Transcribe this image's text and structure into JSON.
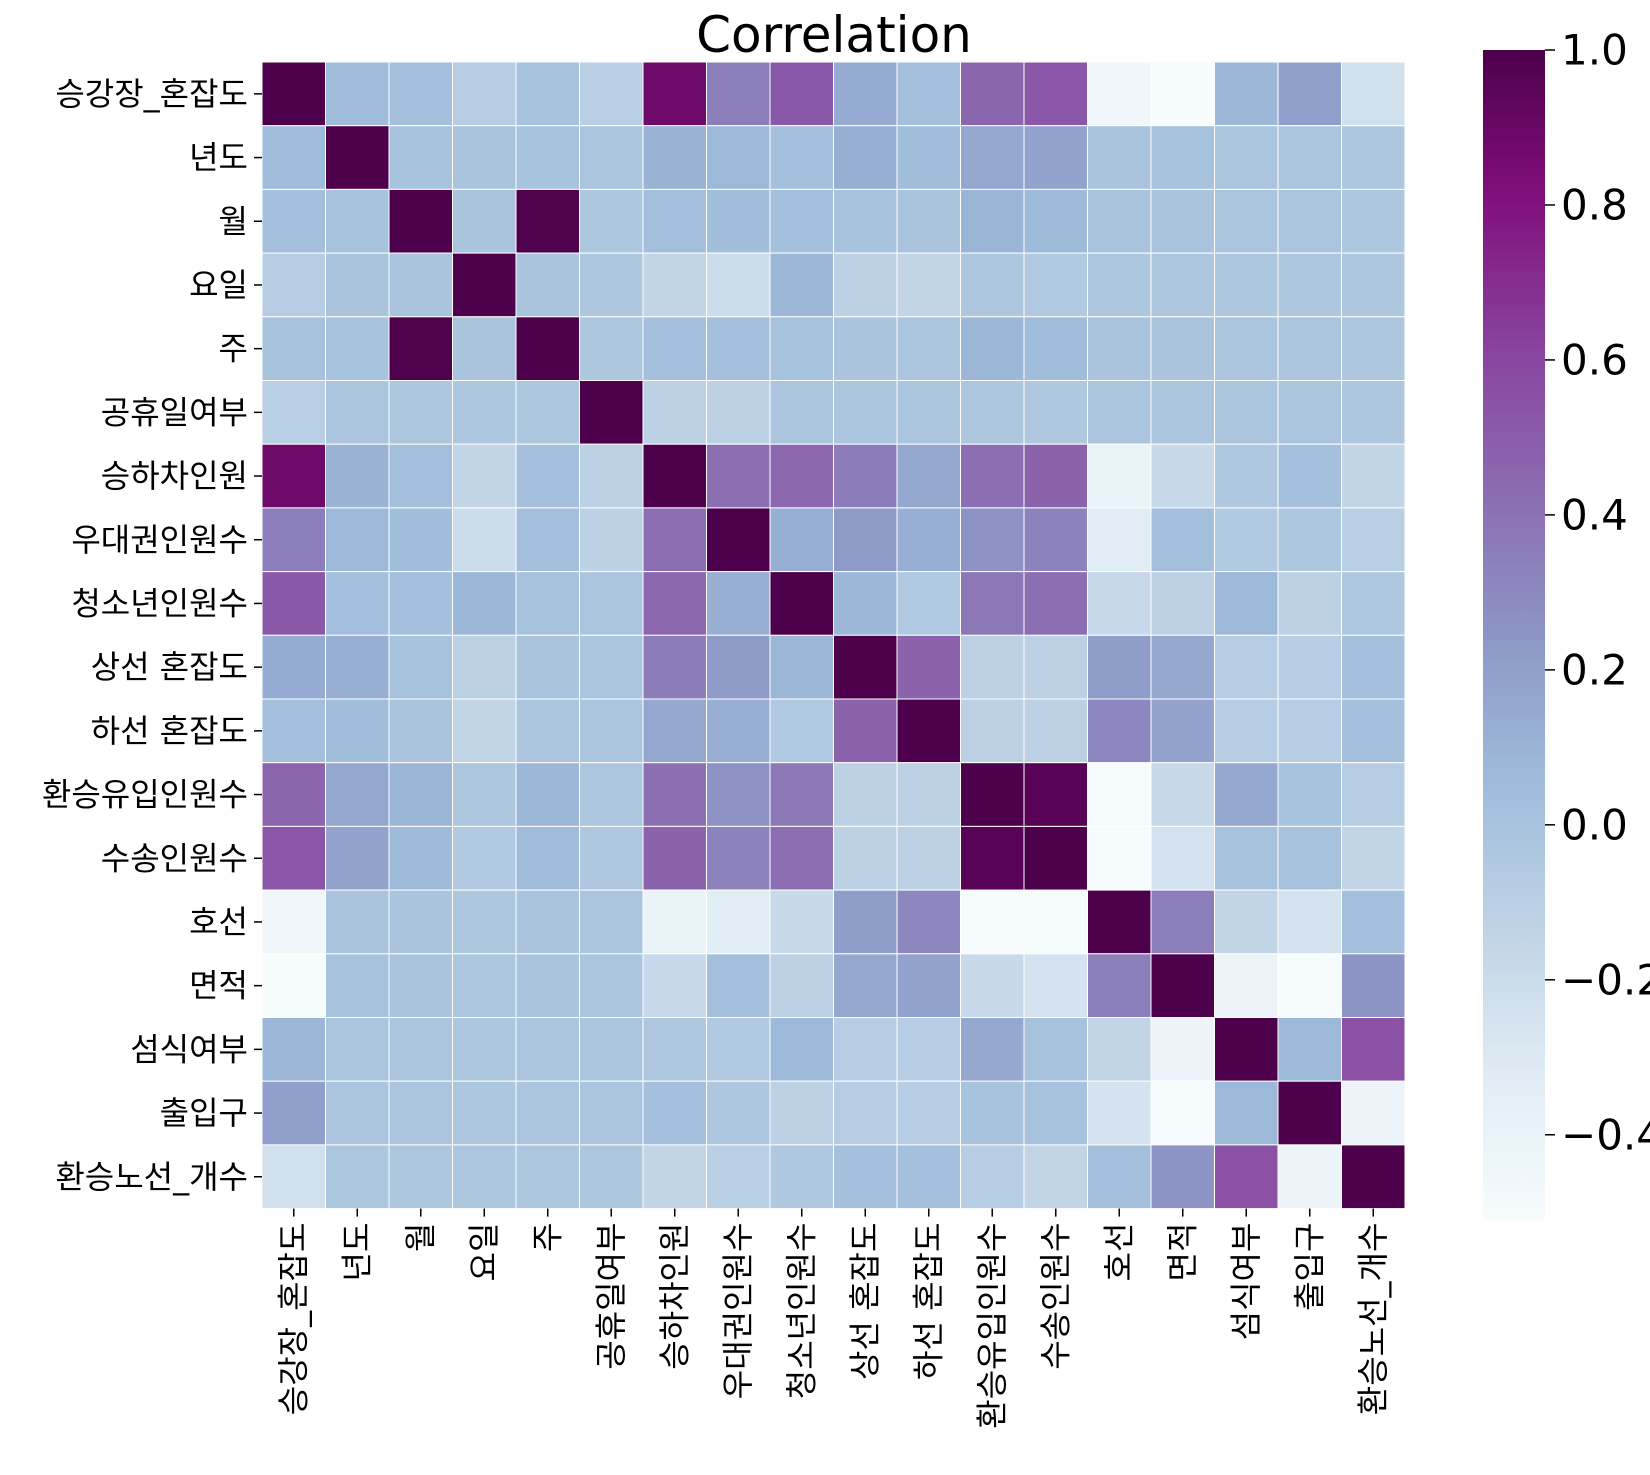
{
  "chart_data": {
    "type": "heatmap",
    "title": "Correlation",
    "xlabel": "",
    "ylabel": "",
    "labels": [
      "승강장_혼잡도",
      "년도",
      "월",
      "요일",
      "주",
      "공휴일여부",
      "승하차인원",
      "우대권인원수",
      "청소년인원수",
      "상선 혼잡도",
      "하선 혼잡도",
      "환승유입인원수",
      "수송인원수",
      "호선",
      "면적",
      "섬식여부",
      "출입구",
      "환승노선_개수"
    ],
    "matrix": [
      [
        1.0,
        0.05,
        0.02,
        -0.08,
        0.01,
        -0.1,
        0.88,
        0.35,
        0.52,
        0.14,
        0.03,
        0.46,
        0.53,
        -0.45,
        -0.51,
        0.08,
        0.2,
        -0.23
      ],
      [
        0.05,
        1.0,
        0.0,
        -0.01,
        0.0,
        -0.02,
        0.1,
        0.07,
        0.02,
        0.12,
        0.04,
        0.16,
        0.18,
        -0.01,
        0.01,
        -0.02,
        -0.02,
        -0.03
      ],
      [
        0.02,
        0.0,
        1.0,
        -0.01,
        0.99,
        -0.03,
        0.03,
        0.04,
        0.02,
        0.0,
        -0.01,
        0.09,
        0.06,
        -0.01,
        -0.01,
        -0.02,
        -0.02,
        -0.03
      ],
      [
        -0.08,
        -0.01,
        -0.01,
        1.0,
        -0.01,
        -0.03,
        -0.15,
        -0.2,
        0.08,
        -0.12,
        -0.15,
        -0.03,
        -0.05,
        -0.03,
        -0.03,
        -0.03,
        -0.03,
        -0.03
      ],
      [
        0.01,
        0.0,
        0.99,
        -0.01,
        1.0,
        -0.03,
        0.02,
        0.03,
        0.01,
        -0.01,
        -0.02,
        0.08,
        0.05,
        -0.01,
        -0.01,
        -0.02,
        -0.02,
        -0.03
      ],
      [
        -0.1,
        -0.02,
        -0.03,
        -0.03,
        -0.03,
        1.0,
        -0.12,
        -0.12,
        -0.02,
        -0.02,
        -0.02,
        -0.03,
        -0.04,
        -0.02,
        -0.02,
        -0.02,
        -0.02,
        -0.03
      ],
      [
        0.88,
        0.1,
        0.03,
        -0.15,
        0.02,
        -0.12,
        1.0,
        0.42,
        0.45,
        0.36,
        0.16,
        0.42,
        0.47,
        -0.4,
        -0.18,
        -0.04,
        0.02,
        -0.15
      ],
      [
        0.35,
        0.07,
        0.04,
        -0.2,
        0.03,
        -0.12,
        0.42,
        1.0,
        0.12,
        0.22,
        0.12,
        0.26,
        0.33,
        -0.33,
        0.03,
        -0.05,
        -0.03,
        -0.1
      ],
      [
        0.52,
        0.02,
        0.02,
        0.08,
        0.01,
        -0.02,
        0.45,
        0.12,
        1.0,
        0.08,
        -0.05,
        0.38,
        0.42,
        -0.18,
        -0.12,
        0.07,
        -0.12,
        -0.04
      ],
      [
        0.14,
        0.12,
        0.0,
        -0.12,
        -0.01,
        -0.02,
        0.36,
        0.22,
        0.08,
        1.0,
        0.47,
        -0.12,
        -0.12,
        0.21,
        0.16,
        -0.08,
        -0.08,
        0.02
      ],
      [
        0.03,
        0.04,
        -0.01,
        -0.15,
        -0.02,
        -0.02,
        0.16,
        0.12,
        -0.05,
        0.47,
        1.0,
        -0.12,
        -0.12,
        0.31,
        0.18,
        -0.08,
        -0.08,
        0.02
      ],
      [
        0.46,
        0.16,
        0.09,
        -0.03,
        0.08,
        -0.03,
        0.42,
        0.26,
        0.38,
        -0.12,
        -0.12,
        1.0,
        0.96,
        -0.5,
        -0.18,
        0.15,
        0.0,
        -0.08
      ],
      [
        0.53,
        0.18,
        0.06,
        -0.05,
        0.05,
        -0.04,
        0.47,
        0.33,
        0.42,
        -0.12,
        -0.12,
        0.96,
        1.0,
        -0.5,
        -0.25,
        0.01,
        0.01,
        -0.15
      ],
      [
        -0.45,
        -0.01,
        -0.01,
        -0.03,
        -0.01,
        -0.02,
        -0.4,
        -0.33,
        -0.18,
        0.21,
        0.31,
        -0.5,
        -0.5,
        1.0,
        0.35,
        -0.15,
        -0.25,
        0.03
      ],
      [
        -0.51,
        0.01,
        -0.01,
        -0.03,
        -0.01,
        -0.02,
        -0.18,
        0.03,
        -0.12,
        0.16,
        0.18,
        -0.18,
        -0.25,
        0.35,
        1.0,
        -0.42,
        -0.5,
        0.25
      ],
      [
        0.08,
        -0.02,
        -0.02,
        -0.03,
        -0.02,
        -0.02,
        -0.04,
        -0.05,
        0.07,
        -0.08,
        -0.08,
        0.15,
        0.01,
        -0.15,
        -0.42,
        1.0,
        0.07,
        0.55
      ],
      [
        0.2,
        -0.02,
        -0.02,
        -0.03,
        -0.02,
        -0.02,
        0.02,
        -0.03,
        -0.12,
        -0.08,
        -0.08,
        0.0,
        0.01,
        -0.25,
        -0.5,
        0.07,
        1.0,
        -0.42
      ],
      [
        -0.23,
        -0.03,
        -0.03,
        -0.03,
        -0.03,
        -0.03,
        -0.15,
        -0.1,
        -0.04,
        0.02,
        0.02,
        -0.08,
        -0.15,
        0.03,
        0.25,
        0.55,
        -0.42,
        1.0
      ]
    ],
    "colorbar": {
      "range": [
        -0.51,
        1.0
      ],
      "ticks": [
        1.0,
        0.8,
        0.6,
        0.4,
        0.2,
        0.0,
        -0.2,
        -0.4
      ],
      "tick_labels": [
        "1.0",
        "0.8",
        "0.6",
        "0.4",
        "0.2",
        "0.0",
        "−0.2",
        "−0.4"
      ],
      "colormap": "BuPu",
      "colormap_stops": [
        "#f7fcfd",
        "#e0ecf4",
        "#bfd3e6",
        "#9ebcda",
        "#8c96c6",
        "#8c6bb1",
        "#88419d",
        "#810f7c",
        "#4d004b"
      ],
      "placement": "right"
    },
    "grid": true,
    "grid_color": "#ffffff"
  }
}
